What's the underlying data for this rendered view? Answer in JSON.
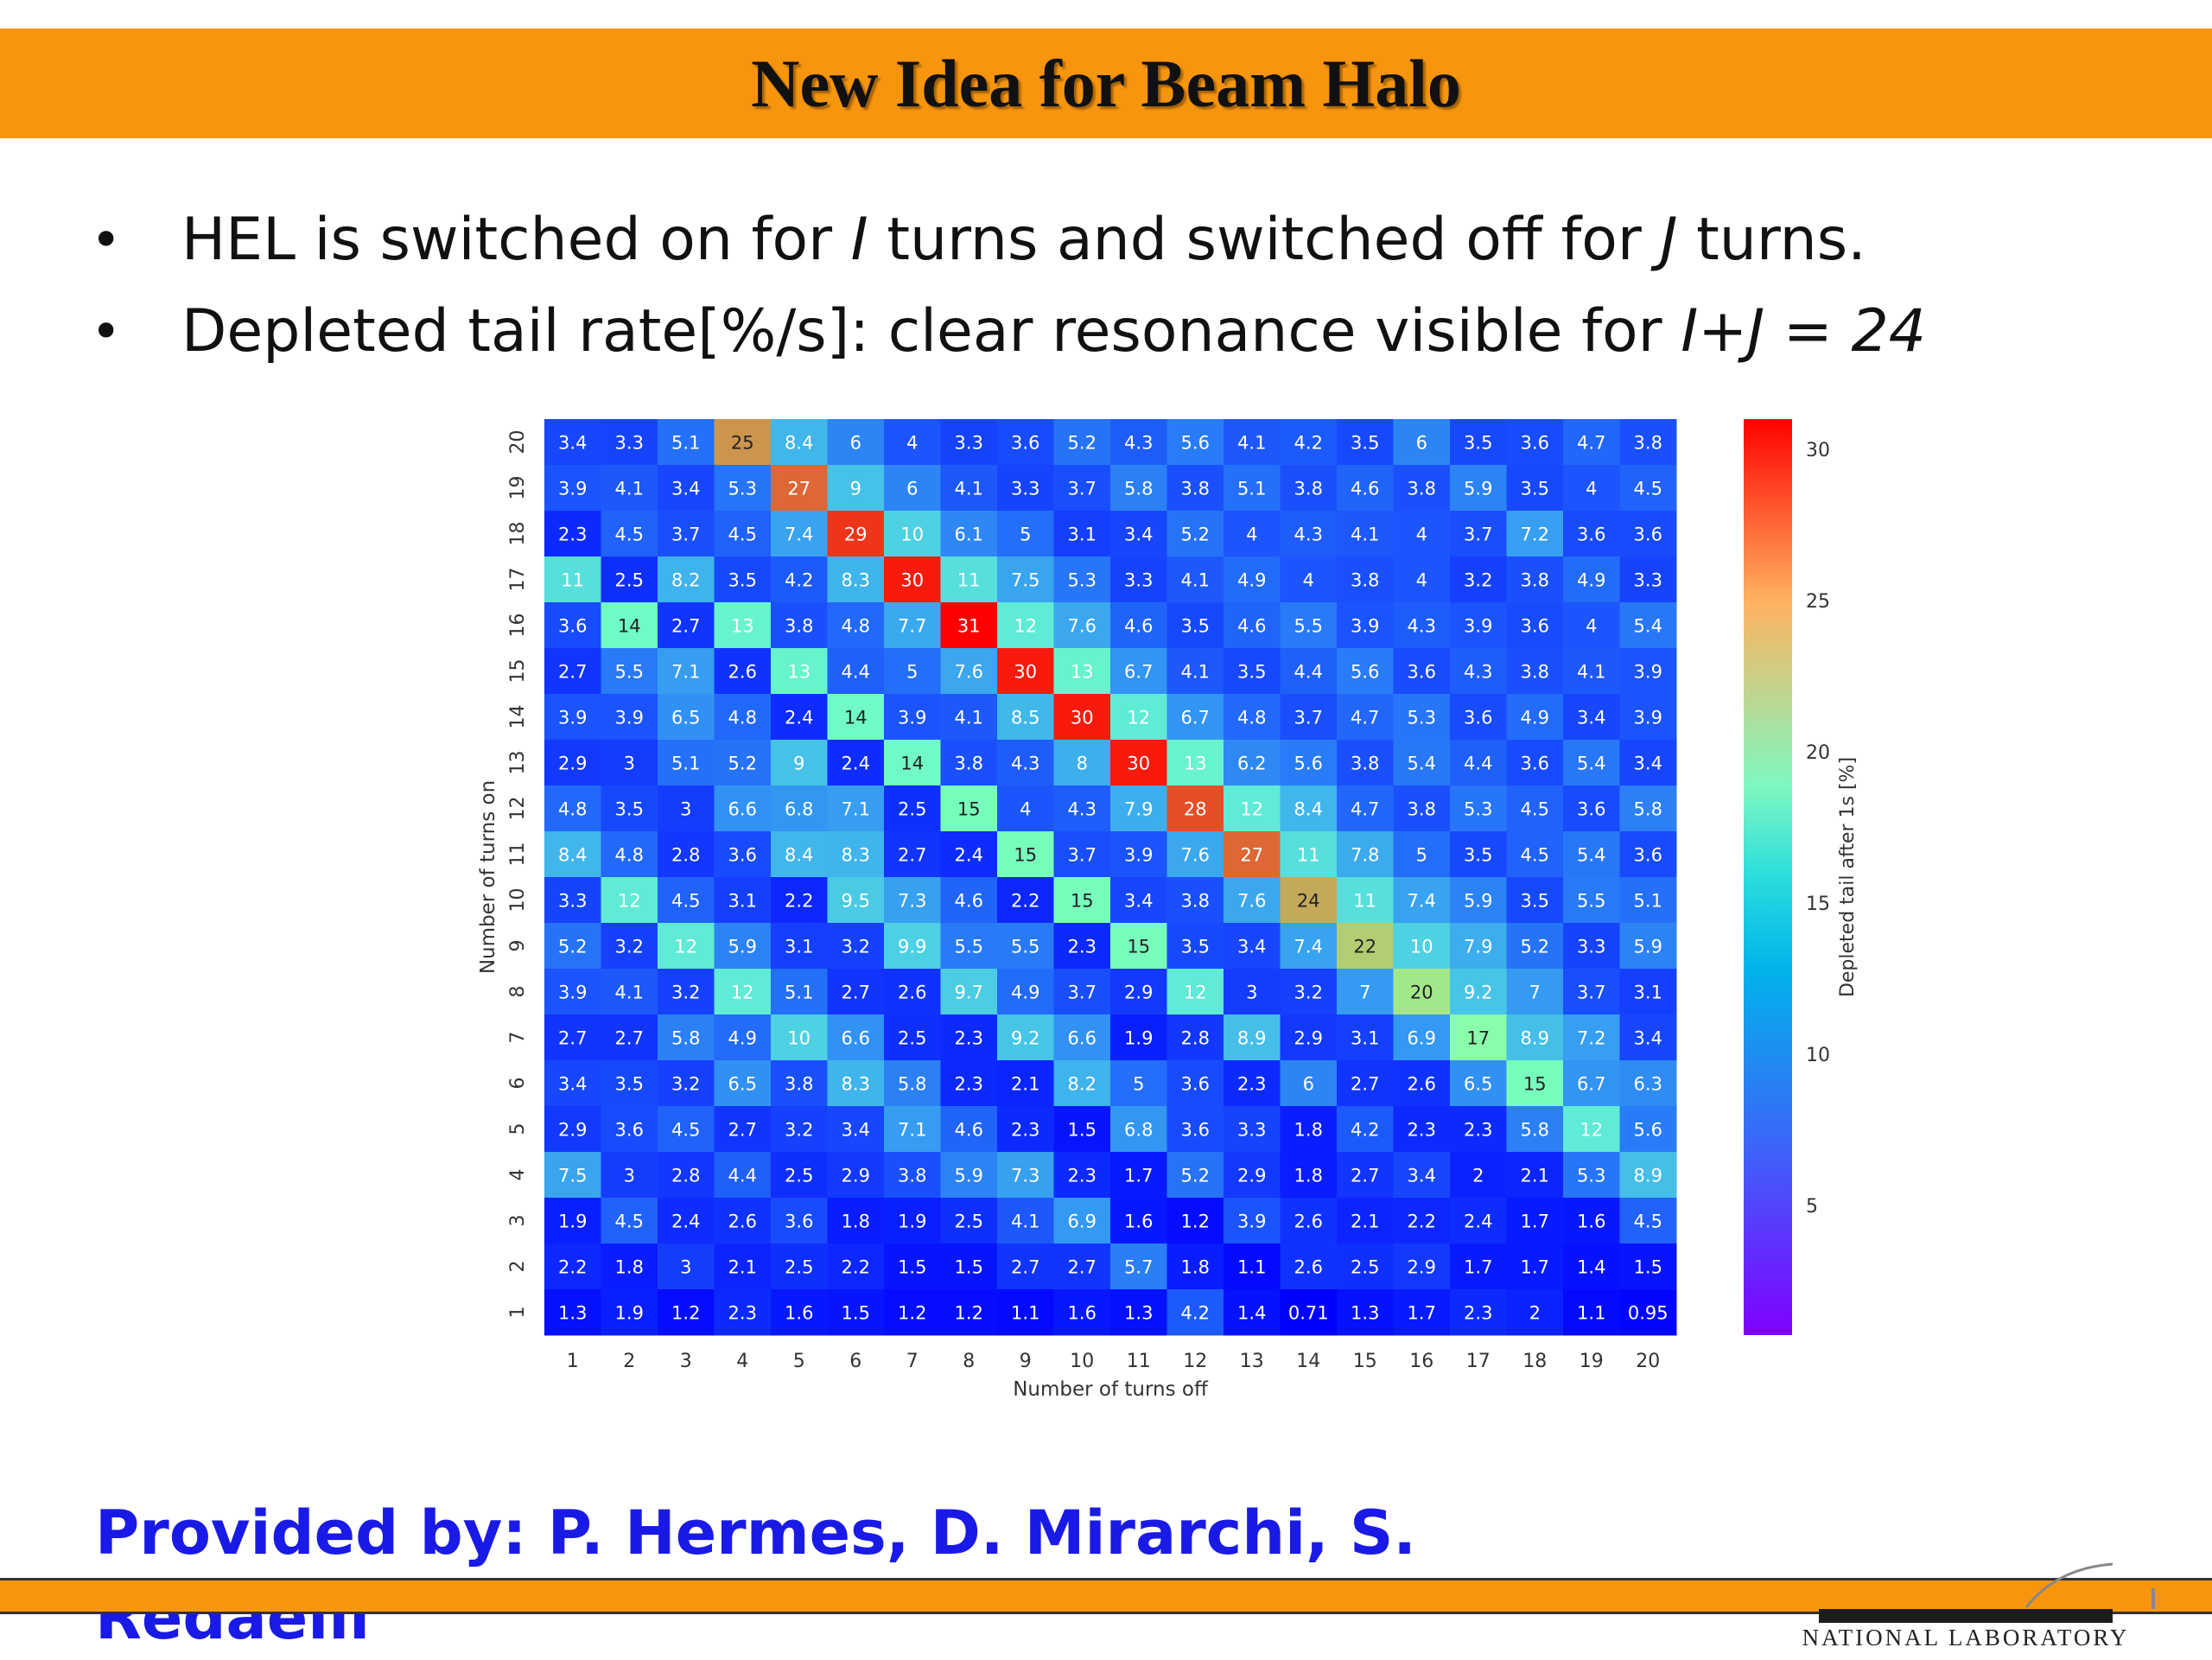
{
  "slide": {
    "title": "New Idea for Beam Halo",
    "bullets": [
      {
        "parts": [
          "HEL is switched on for ",
          "I",
          " turns and switched off for ",
          "J",
          " turns."
        ]
      },
      {
        "parts": [
          "Depleted tail rate[%/s]: clear resonance visible for ",
          "I+J = 24",
          "",
          "",
          ""
        ]
      }
    ],
    "provided_by": "Provided by: P. Hermes, D. Mirarchi, S. Redaelli",
    "logo_text": "NATIONAL LABORATORY",
    "accent_color": "#f7950f",
    "provided_color": "#1a1ae6"
  },
  "chart_data": {
    "type": "heatmap",
    "title": "",
    "xlabel": "Number of turns off",
    "ylabel": "Number of turns on",
    "colorbar_label": "Depleted tail after 1s [%]",
    "colormap": "rainbow",
    "colorbar_ticks": [
      5,
      10,
      15,
      20,
      25,
      30
    ],
    "vrange": [
      0.71,
      31
    ],
    "x": [
      1,
      2,
      3,
      4,
      5,
      6,
      7,
      8,
      9,
      10,
      11,
      12,
      13,
      14,
      15,
      16,
      17,
      18,
      19,
      20
    ],
    "y": [
      1,
      2,
      3,
      4,
      5,
      6,
      7,
      8,
      9,
      10,
      11,
      12,
      13,
      14,
      15,
      16,
      17,
      18,
      19,
      20
    ],
    "x_tick_labels": [
      "1",
      "2",
      "3",
      "4",
      "5",
      "6",
      "7",
      "8",
      "9",
      "10",
      "11",
      "12",
      "13",
      "14",
      "15",
      "16",
      "17",
      "18",
      "19",
      "20"
    ],
    "y_tick_labels": [
      "1",
      "2",
      "3",
      "4",
      "5",
      "6",
      "7",
      "8",
      "9",
      "10",
      "11",
      "12",
      "13",
      "14",
      "15",
      "16",
      "17",
      "18",
      "19",
      "20"
    ],
    "rows_top_to_bottom_y": [
      20,
      19,
      18,
      17,
      16,
      15,
      14,
      13,
      12,
      11,
      10,
      9,
      8,
      7,
      6,
      5,
      4,
      3,
      2,
      1
    ],
    "values": [
      [
        "3.4",
        "3.3",
        "5.1",
        "25",
        "8.4",
        "6",
        "4",
        "3.3",
        "3.6",
        "5.2",
        "4.3",
        "5.6",
        "4.1",
        "4.2",
        "3.5",
        "6",
        "3.5",
        "3.6",
        "4.7",
        "3.8"
      ],
      [
        "3.9",
        "4.1",
        "3.4",
        "5.3",
        "27",
        "9",
        "6",
        "4.1",
        "3.3",
        "3.7",
        "5.8",
        "3.8",
        "5.1",
        "3.8",
        "4.6",
        "3.8",
        "5.9",
        "3.5",
        "4",
        "4.5"
      ],
      [
        "2.3",
        "4.5",
        "3.7",
        "4.5",
        "7.4",
        "29",
        "10",
        "6.1",
        "5",
        "3.1",
        "3.4",
        "5.2",
        "4",
        "4.3",
        "4.1",
        "4",
        "3.7",
        "7.2",
        "3.6",
        "3.6"
      ],
      [
        "11",
        "2.5",
        "8.2",
        "3.5",
        "4.2",
        "8.3",
        "30",
        "11",
        "7.5",
        "5.3",
        "3.3",
        "4.1",
        "4.9",
        "4",
        "3.8",
        "4",
        "3.2",
        "3.8",
        "4.9",
        "3.3"
      ],
      [
        "3.6",
        "14",
        "2.7",
        "13",
        "3.8",
        "4.8",
        "7.7",
        "31",
        "12",
        "7.6",
        "4.6",
        "3.5",
        "4.6",
        "5.5",
        "3.9",
        "4.3",
        "3.9",
        "3.6",
        "4",
        "5.4"
      ],
      [
        "2.7",
        "5.5",
        "7.1",
        "2.6",
        "13",
        "4.4",
        "5",
        "7.6",
        "30",
        "13",
        "6.7",
        "4.1",
        "3.5",
        "4.4",
        "5.6",
        "3.6",
        "4.3",
        "3.8",
        "4.1",
        "3.9"
      ],
      [
        "3.9",
        "3.9",
        "6.5",
        "4.8",
        "2.4",
        "14",
        "3.9",
        "4.1",
        "8.5",
        "30",
        "12",
        "6.7",
        "4.8",
        "3.7",
        "4.7",
        "5.3",
        "3.6",
        "4.9",
        "3.4",
        "3.9"
      ],
      [
        "2.9",
        "3",
        "5.1",
        "5.2",
        "9",
        "2.4",
        "14",
        "3.8",
        "4.3",
        "8",
        "30",
        "13",
        "6.2",
        "5.6",
        "3.8",
        "5.4",
        "4.4",
        "3.6",
        "5.4",
        "3.4"
      ],
      [
        "4.8",
        "3.5",
        "3",
        "6.6",
        "6.8",
        "7.1",
        "2.5",
        "15",
        "4",
        "4.3",
        "7.9",
        "28",
        "12",
        "8.4",
        "4.7",
        "3.8",
        "5.3",
        "4.5",
        "3.6",
        "5.8"
      ],
      [
        "8.4",
        "4.8",
        "2.8",
        "3.6",
        "8.4",
        "8.3",
        "2.7",
        "2.4",
        "15",
        "3.7",
        "3.9",
        "7.6",
        "27",
        "11",
        "7.8",
        "5",
        "3.5",
        "4.5",
        "5.4",
        "3.6"
      ],
      [
        "3.3",
        "12",
        "4.5",
        "3.1",
        "2.2",
        "9.5",
        "7.3",
        "4.6",
        "2.2",
        "15",
        "3.4",
        "3.8",
        "7.6",
        "24",
        "11",
        "7.4",
        "5.9",
        "3.5",
        "5.5",
        "5.1"
      ],
      [
        "5.2",
        "3.2",
        "12",
        "5.9",
        "3.1",
        "3.2",
        "9.9",
        "5.5",
        "5.5",
        "2.3",
        "15",
        "3.5",
        "3.4",
        "7.4",
        "22",
        "10",
        "7.9",
        "5.2",
        "3.3",
        "5.9"
      ],
      [
        "3.9",
        "4.1",
        "3.2",
        "12",
        "5.1",
        "2.7",
        "2.6",
        "9.7",
        "4.9",
        "3.7",
        "2.9",
        "12",
        "3",
        "3.2",
        "7",
        "20",
        "9.2",
        "7",
        "3.7",
        "3.1"
      ],
      [
        "2.7",
        "2.7",
        "5.8",
        "4.9",
        "10",
        "6.6",
        "2.5",
        "2.3",
        "9.2",
        "6.6",
        "1.9",
        "2.8",
        "8.9",
        "2.9",
        "3.1",
        "6.9",
        "17",
        "8.9",
        "7.2",
        "3.4"
      ],
      [
        "3.4",
        "3.5",
        "3.2",
        "6.5",
        "3.8",
        "8.3",
        "5.8",
        "2.3",
        "2.1",
        "8.2",
        "5",
        "3.6",
        "2.3",
        "6",
        "2.7",
        "2.6",
        "6.5",
        "15",
        "6.7",
        "6.3"
      ],
      [
        "2.9",
        "3.6",
        "4.5",
        "2.7",
        "3.2",
        "3.4",
        "7.1",
        "4.6",
        "2.3",
        "1.5",
        "6.8",
        "3.6",
        "3.3",
        "1.8",
        "4.2",
        "2.3",
        "2.3",
        "5.8",
        "12",
        "5.6"
      ],
      [
        "7.5",
        "3",
        "2.8",
        "4.4",
        "2.5",
        "2.9",
        "3.8",
        "5.9",
        "7.3",
        "2.3",
        "1.7",
        "5.2",
        "2.9",
        "1.8",
        "2.7",
        "3.4",
        "2",
        "2.1",
        "5.3",
        "8.9"
      ],
      [
        "1.9",
        "4.5",
        "2.4",
        "2.6",
        "3.6",
        "1.8",
        "1.9",
        "2.5",
        "4.1",
        "6.9",
        "1.6",
        "1.2",
        "3.9",
        "2.6",
        "2.1",
        "2.2",
        "2.4",
        "1.7",
        "1.6",
        "4.5"
      ],
      [
        "2.2",
        "1.8",
        "3",
        "2.1",
        "2.5",
        "2.2",
        "1.5",
        "1.5",
        "2.7",
        "2.7",
        "5.7",
        "1.8",
        "1.1",
        "2.6",
        "2.5",
        "2.9",
        "1.7",
        "1.7",
        "1.4",
        "1.5"
      ],
      [
        "1.3",
        "1.9",
        "1.2",
        "2.3",
        "1.6",
        "1.5",
        "1.2",
        "1.2",
        "1.1",
        "1.6",
        "1.3",
        "4.2",
        "1.4",
        "0.71",
        "1.3",
        "1.7",
        "2.3",
        "2",
        "1.1",
        "0.95"
      ]
    ]
  }
}
